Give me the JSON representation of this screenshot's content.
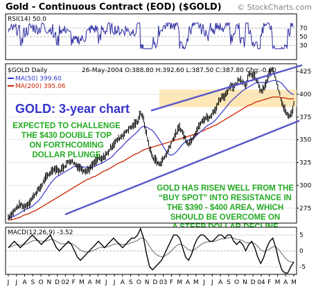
{
  "chart_data": {
    "type": "line",
    "title": "Gold - Continuous Contract (EOD) ($GOLD)",
    "credit": "© StockCharts.com",
    "x_labels": [
      "J",
      "J",
      "A",
      "S",
      "O",
      "N",
      "D",
      "02",
      "F",
      "M",
      "A",
      "M",
      "J",
      "J",
      "A",
      "S",
      "O",
      "N",
      "D",
      "03",
      "F",
      "M",
      "A",
      "M",
      "J",
      "J",
      "A",
      "S",
      "O",
      "N",
      "D",
      "04",
      "F",
      "M",
      "A",
      "M"
    ],
    "rsi": {
      "label": "RSI(14) 50.0",
      "levels": [
        70,
        50,
        30
      ],
      "ylim": [
        0,
        100
      ]
    },
    "price": {
      "series_label": "$GOLD Daily",
      "quote": "26-May-2004  O:388.80  H:392.60  L:387.50  C:387.80  Chg:-0.60",
      "ma50_label": "MA(50) 399.60",
      "ma200_label": "MA(200) 395.06",
      "ylim": [
        260,
        432
      ],
      "yticks": [
        275,
        300,
        325,
        350,
        375,
        400,
        425
      ],
      "closes": [
        265,
        268,
        272,
        276,
        279,
        276,
        278,
        281,
        286,
        291,
        295,
        299,
        306,
        310,
        314,
        318,
        318,
        315,
        319,
        322,
        326,
        327,
        324,
        321,
        319,
        317,
        316,
        318,
        322,
        326,
        330,
        328,
        332,
        335,
        341,
        345,
        349,
        352,
        355,
        358,
        362,
        364,
        367,
        370,
        380,
        372,
        356,
        341,
        331,
        328,
        323,
        326,
        331,
        337,
        345,
        352,
        358,
        364,
        358,
        350,
        346,
        350,
        356,
        362,
        368,
        372,
        375,
        374,
        380,
        384,
        391,
        396,
        398,
        404,
        410,
        408,
        412,
        417,
        414,
        410,
        421,
        422,
        419,
        413,
        403,
        406,
        414,
        424,
        427,
        418,
        404,
        392,
        383,
        376,
        378,
        385
      ],
      "ma50": [
        264,
        265,
        266,
        268,
        270,
        272,
        274,
        275,
        277,
        280,
        283,
        287,
        292,
        297,
        302,
        306,
        309,
        311,
        313,
        315,
        317,
        319,
        321,
        321,
        321,
        320,
        320,
        319,
        320,
        321,
        323,
        324,
        326,
        328,
        330,
        333,
        337,
        340,
        343,
        347,
        350,
        353,
        356,
        359,
        363,
        365,
        364,
        362,
        360,
        356,
        351,
        346,
        340,
        335,
        333,
        334,
        337,
        341,
        345,
        348,
        350,
        351,
        353,
        356,
        359,
        362,
        365,
        367,
        369,
        372,
        376,
        380,
        384,
        388,
        392,
        395,
        398,
        401,
        404,
        406,
        408,
        410,
        412,
        413,
        413,
        413,
        413,
        414,
        415,
        415,
        414,
        412,
        408,
        404,
        401,
        399.6
      ],
      "ma200": [
        262,
        262,
        263,
        264,
        265,
        267,
        268,
        269,
        271,
        272,
        274,
        276,
        278,
        280,
        282,
        284,
        286,
        288,
        290,
        292,
        294,
        296,
        298,
        300,
        302,
        304,
        306,
        307,
        309,
        310,
        312,
        314,
        316,
        317,
        319,
        321,
        323,
        325,
        326,
        328,
        330,
        332,
        334,
        335,
        337,
        339,
        340,
        341,
        342,
        343,
        344,
        345,
        346,
        347,
        348,
        349,
        350,
        351,
        352,
        353,
        354,
        355,
        356,
        357,
        359,
        360,
        362,
        363,
        365,
        366,
        368,
        370,
        372,
        374,
        376,
        378,
        380,
        382,
        384,
        386,
        388,
        389,
        391,
        392,
        393,
        394,
        395,
        396,
        397,
        397,
        397,
        396,
        396,
        395,
        395,
        395.06
      ]
    },
    "macd": {
      "label": "MACD(12,26,9) -3.52",
      "ylim": [
        -7,
        7
      ],
      "yticks": [
        5,
        0,
        -5
      ],
      "line": [
        1,
        2,
        3,
        2,
        1,
        2,
        3,
        4,
        5,
        4,
        3,
        2,
        3,
        4,
        5,
        3,
        1,
        0,
        1,
        2,
        3,
        2,
        0,
        -2,
        -3,
        -2,
        -1,
        0,
        1,
        2,
        3,
        2,
        1,
        2,
        3,
        4,
        3,
        2,
        1,
        2,
        3,
        4,
        4,
        5,
        7,
        4,
        -1,
        -5,
        -6,
        -5,
        -4,
        -3,
        -1,
        1,
        3,
        5,
        5,
        4,
        1,
        -2,
        -3,
        -1,
        2,
        4,
        5,
        5,
        4,
        3,
        3,
        4,
        5,
        5,
        4,
        5,
        5,
        3,
        2,
        3,
        2,
        0,
        2,
        3,
        1,
        -2,
        -4,
        -2,
        1,
        3,
        4,
        1,
        -3,
        -6,
        -7,
        -7,
        -5,
        -3.52
      ],
      "signal": [
        1,
        1.3,
        1.7,
        2,
        1.8,
        1.9,
        2.2,
        2.6,
        3.1,
        3.3,
        3.2,
        3,
        3,
        3.2,
        3.6,
        3.5,
        3,
        2.4,
        2.2,
        2.2,
        2.4,
        2.3,
        1.8,
        1,
        0.2,
        -0.2,
        -0.4,
        -0.3,
        0,
        0.4,
        0.9,
        1.1,
        1.1,
        1.3,
        1.6,
        2,
        2.2,
        2.2,
        2,
        2,
        2.2,
        2.6,
        2.9,
        3.3,
        4,
        4,
        3,
        1.4,
        0,
        -1,
        -1.6,
        -1.9,
        -1.7,
        -1.1,
        -0.3,
        0.8,
        1.6,
        2.1,
        1.9,
        1.1,
        0.3,
        0,
        0.4,
        1.1,
        1.9,
        2.5,
        2.8,
        2.9,
        2.9,
        3.1,
        3.5,
        3.8,
        3.8,
        4,
        4.2,
        4,
        3.6,
        3.5,
        3.2,
        2.6,
        2.5,
        2.6,
        2.3,
        1.4,
        0.3,
        -0.2,
        0,
        0.6,
        1.3,
        1.2,
        0.4,
        -0.9,
        -2.1,
        -3.1,
        -3.5,
        -3.5
      ]
    },
    "annotations": {
      "chart_label": "GOLD: 3-year chart",
      "left_note": [
        "EXPECTED TO CHALLENGE",
        "THE $430 DOUBLE TOP",
        "ON FORTHCOMING",
        "DOLLAR PLUNGE"
      ],
      "right_note": [
        "GOLD HAS RISEN WELL FROM THE",
        "“BUY SPOT” INTO RESISTANCE IN",
        "THE $390 - $400 AREA, WHICH",
        "SHOULD BE OVERCOME ON",
        "A STEEP DOLLAR DECLINE"
      ]
    },
    "colors": {
      "price": "#000000",
      "ma50": "#3333cc",
      "ma200": "#cc2200",
      "channel": "#5555cc",
      "highlight": "#fde7b6",
      "annotation": "#22aa22",
      "chart_label": "#3333cc",
      "rsi": "#2a2aa0",
      "macd_line": "#000000",
      "macd_signal": "#7f7f7f"
    }
  }
}
